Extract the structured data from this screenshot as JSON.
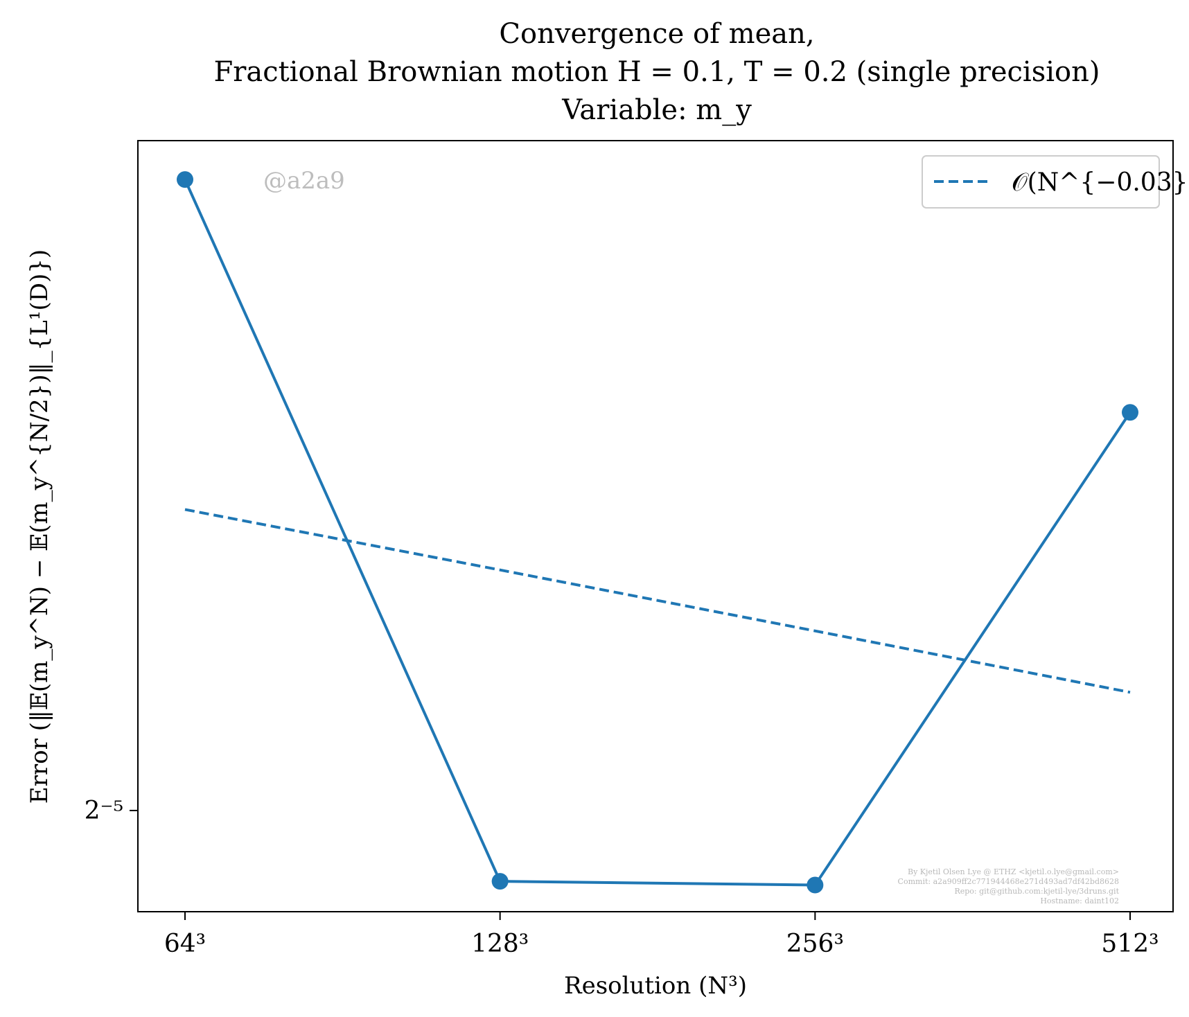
{
  "chart_data": {
    "type": "line",
    "title": [
      "Convergence of mean,",
      "Fractional Brownian motion H = 0.1, T = 0.2 (single precision)",
      "Variable: m_y"
    ],
    "xlabel": "Resolution (N³)",
    "ylabel": "Error (‖𝔼(m_y^N) − 𝔼(m_y^{N/2})‖_{L¹(D)})",
    "yscale": "log2",
    "ytick_label": "2⁻⁵",
    "ytick_value": 0.03125,
    "ylim": [
      0.0285,
      0.0575
    ],
    "x": [
      64,
      128,
      256,
      512
    ],
    "x_tick_labels": [
      "64³",
      "128³",
      "256³",
      "512³"
    ],
    "grid": false,
    "series": [
      {
        "values": [
          0.0555,
          0.0293,
          0.0292,
          0.0449
        ],
        "style": "solid",
        "marker": "circle",
        "color": "#1f77b4"
      },
      {
        "name": "𝒪(N^{−0.03})",
        "values": [
          0.0411,
          0.0389,
          0.0368,
          0.0348
        ],
        "style": "dashed",
        "color": "#1f77b4"
      }
    ],
    "legend_position": "top-right",
    "watermark": "@a2a9",
    "footer_lines": [
      "By Kjetil Olsen Lye @ ETHZ <kjetil.o.lye@gmail.com>",
      "Commit: a2a909ff2c771944468e271d493ad7df42bd8628",
      "Repo: git@github.com:kjetil-lye/3druns.git",
      "Hostname: daint102"
    ]
  }
}
